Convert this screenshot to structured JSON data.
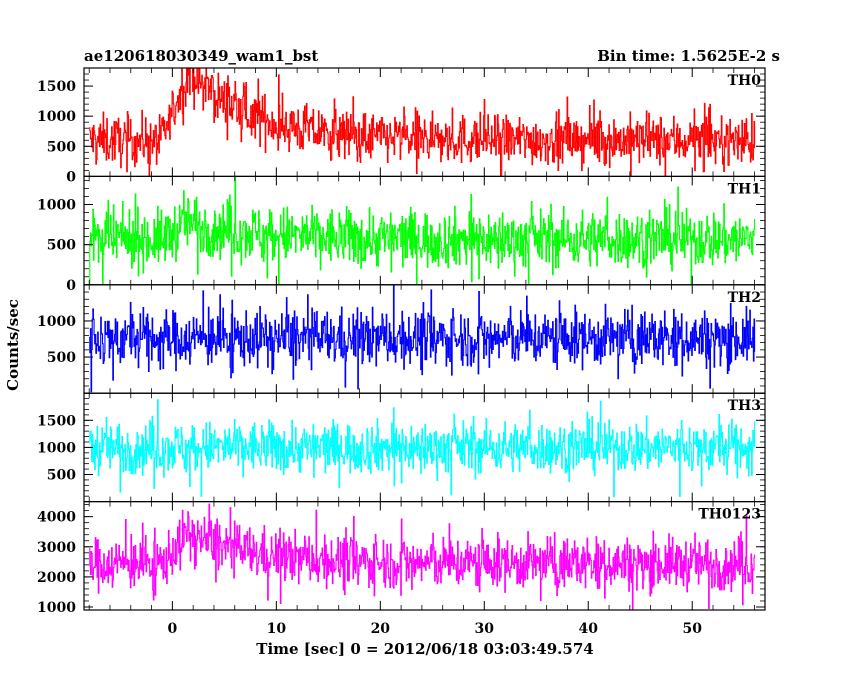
{
  "header": {
    "title": "ae120618030349_wam1_bst",
    "bin_time": "Bin time: 1.5625E-2 s"
  },
  "chart_data": {
    "type": "line",
    "title": "ae120618030349_wam1_bst",
    "subtitle": "Bin time: 1.5625E-2 s",
    "xlabel": "Time [sec] 0 = 2012/06/18 03:03:49.574",
    "ylabel": "Counts/sec",
    "xlim": [
      -8.5,
      57
    ],
    "data_range": [
      -8,
      56
    ],
    "x_ticks": [
      0,
      10,
      20,
      30,
      40,
      50
    ],
    "x_tick_labels": [
      "0",
      "10",
      "20",
      "30",
      "40",
      "50"
    ],
    "grid": false,
    "panels": [
      {
        "name": "TH0",
        "color": "#ff0000",
        "ylim": [
          0,
          1800
        ],
        "y_ticks": [
          0,
          500,
          1000,
          1500
        ],
        "y_tick_labels": [
          "0",
          "500",
          "1000",
          "1500"
        ],
        "baseline": 600,
        "noise": 290,
        "low": 0,
        "high": 1800,
        "burst": {
          "peak": 1150,
          "start": -1,
          "rise_end": 1.5,
          "decay": 6
        }
      },
      {
        "name": "TH1",
        "color": "#00ff00",
        "ylim": [
          0,
          1350
        ],
        "y_ticks": [
          0,
          500,
          1000
        ],
        "y_tick_labels": [
          "0",
          "500",
          "1000"
        ],
        "baseline": 570,
        "noise": 250,
        "low": 0,
        "high": 1350,
        "burst": {
          "peak": 220,
          "start": -1,
          "rise_end": 1.5,
          "decay": 6
        }
      },
      {
        "name": "TH2",
        "color": "#0000ff",
        "ylim": [
          0,
          1500
        ],
        "y_ticks": [
          500,
          1000
        ],
        "y_tick_labels": [
          "500",
          "1000"
        ],
        "baseline": 760,
        "noise": 270,
        "low": 0,
        "high": 1500,
        "burst": {
          "peak": 0,
          "start": -1,
          "rise_end": 1.5,
          "decay": 6
        }
      },
      {
        "name": "TH3",
        "color": "#00ffff",
        "ylim": [
          0,
          2000
        ],
        "y_ticks": [
          500,
          1000,
          1500
        ],
        "y_tick_labels": [
          "500",
          "1000",
          "1500"
        ],
        "baseline": 1000,
        "noise": 330,
        "low": 0,
        "high": 2000,
        "burst": {
          "peak": 0,
          "start": -1,
          "rise_end": 1.5,
          "decay": 6
        }
      },
      {
        "name": "TH0123",
        "color": "#ff00ff",
        "ylim": [
          900,
          4500
        ],
        "y_ticks": [
          1000,
          2000,
          3000,
          4000
        ],
        "y_tick_labels": [
          "1000",
          "2000",
          "3000",
          "4000"
        ],
        "baseline": 2450,
        "noise": 600,
        "low": 900,
        "high": 4500,
        "burst": {
          "peak": 1000,
          "start": -1,
          "rise_end": 1.5,
          "decay": 6
        }
      }
    ]
  }
}
